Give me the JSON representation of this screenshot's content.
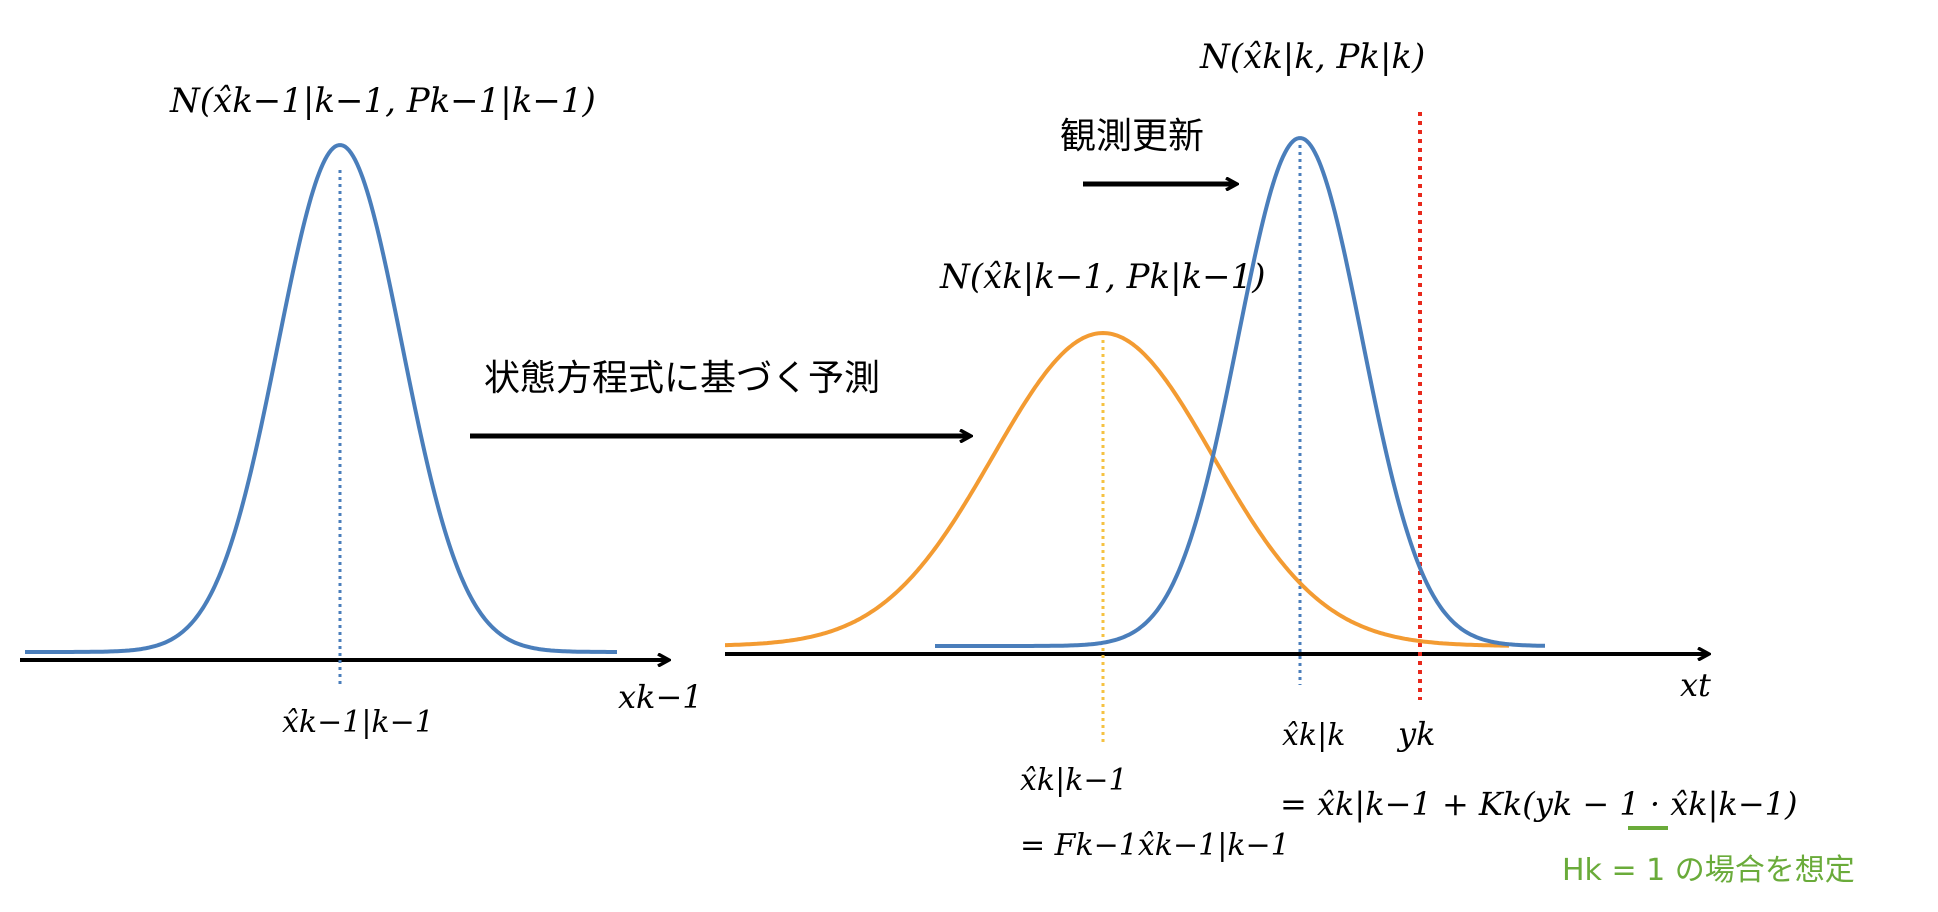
{
  "colors": {
    "blue_curve": "#4a7ebb",
    "orange_curve": "#f39b32",
    "blue_mean_line": "#4a7ebb",
    "yellow_mean_line": "#f5c242",
    "red_obs_line": "#e8291c",
    "green_note": "#6aab3a",
    "axis": "#000000"
  },
  "labels": {
    "prior_dist": "N(x̂k−1|k−1, Pk−1|k−1)",
    "prior_mean": "x̂k−1|k−1",
    "left_axis": "xk−1",
    "predict_arrow": "状態方程式に基づく予測",
    "predicted_dist": "N(x̂k|k−1, Pk|k−1)",
    "update_arrow": "観測更新",
    "posterior_dist": "N(x̂k|k, Pk|k)",
    "right_axis": "xt",
    "posterior_mean": "x̂k|k",
    "observation": "yk",
    "predicted_mean": "x̂k|k−1",
    "predicted_mean_formula": "= Fk−1x̂k−1|k−1",
    "update_formula": "= x̂k|k−1 + Kk(yk − 1 · x̂k|k−1)",
    "assumption_note": "Hk = 1 の場合を想定"
  }
}
